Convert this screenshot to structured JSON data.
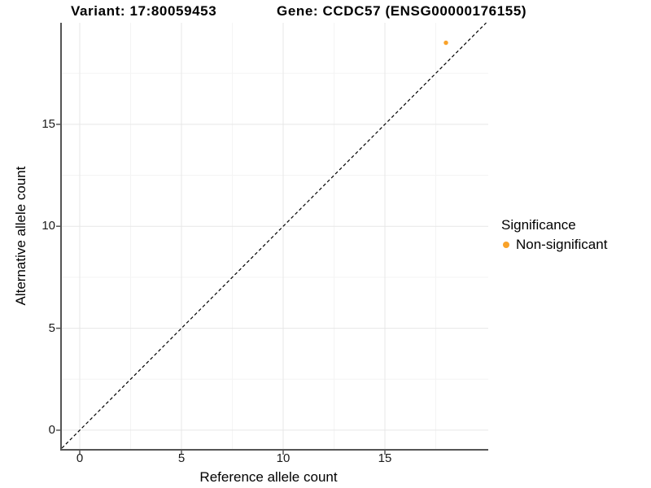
{
  "figure": {
    "title_variant": "Variant: 17:80059453",
    "title_gene": "Gene: CCDC57 (ENSG00000176155)"
  },
  "chart_data": {
    "type": "scatter",
    "title": "Variant: 17:80059453   Gene: CCDC57 (ENSG00000176155)",
    "xlabel": "Reference allele count",
    "ylabel": "Alternative allele count",
    "x_ticks": [
      0,
      5,
      10,
      15
    ],
    "y_ticks": [
      0,
      5,
      10,
      15
    ],
    "x_minor_ticks": [
      2.5,
      7.5,
      12.5,
      17.5
    ],
    "y_minor_ticks": [
      2.5,
      7.5,
      12.5,
      17.5
    ],
    "xlim": [
      -0.88,
      20.08
    ],
    "ylim": [
      -0.92,
      19.98
    ],
    "grid": {
      "on": true,
      "major_color": "#e7e7e7",
      "minor_color": "#f4f4f4"
    },
    "axis_line_color": "#555555",
    "identity_line": {
      "equation": "y = x",
      "style": "dashed",
      "color": "#000000"
    },
    "points": [
      {
        "x": 18,
        "y": 19,
        "series": "Non-significant",
        "color": "#F9A229"
      }
    ],
    "legend": {
      "title": "Significance",
      "position": "right",
      "items": [
        {
          "label": "Non-significant",
          "color": "#F9A229"
        }
      ]
    }
  }
}
